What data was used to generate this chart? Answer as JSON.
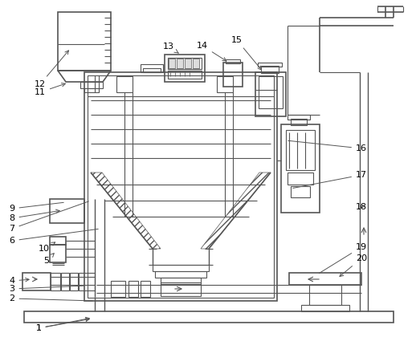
{
  "bg_color": "#ffffff",
  "line_color": "#555555",
  "lw_main": 1.2,
  "lw_thin": 0.8,
  "lw_label": 0.7
}
